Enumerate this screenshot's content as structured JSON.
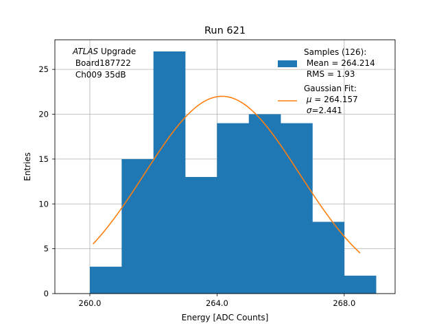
{
  "chart_data": {
    "type": "bar",
    "title": "Run 621",
    "xlabel": "Energy [ADC Counts]",
    "ylabel": "Entries",
    "xlim": [
      258.9,
      269.6
    ],
    "ylim": [
      0,
      28.3
    ],
    "grid": true,
    "legend_position": "top-right",
    "x_ticks": [
      {
        "value": 260,
        "label": "260.0"
      },
      {
        "value": 264,
        "label": "264.0"
      },
      {
        "value": 268,
        "label": "268.0"
      }
    ],
    "y_ticks": [
      {
        "value": 0,
        "label": "0"
      },
      {
        "value": 5,
        "label": "5"
      },
      {
        "value": 10,
        "label": "10"
      },
      {
        "value": 15,
        "label": "15"
      },
      {
        "value": 20,
        "label": "20"
      },
      {
        "value": 25,
        "label": "25"
      }
    ],
    "histogram": {
      "bin_edges": [
        260,
        261,
        262,
        263,
        264,
        265,
        266,
        267,
        268,
        269
      ],
      "counts": [
        3,
        15,
        27,
        13,
        19,
        20,
        19,
        8,
        2
      ],
      "color": "#1f77b4"
    },
    "fit": {
      "type": "gaussian",
      "amplitude": 22.0,
      "mu": 264.157,
      "sigma": 2.441,
      "x_range": [
        260.1,
        268.5
      ],
      "color": "#ff7f0e"
    },
    "annotation_lines": [
      {
        "italic": "ATLAS",
        "text": " Upgrade"
      },
      {
        "italic": "",
        "text": " Board187722"
      },
      {
        "italic": "",
        "text": " Ch009 35dB"
      }
    ],
    "legend": {
      "samples": {
        "lines": [
          "Samples (126):",
          " Mean = 264.214",
          " RMS = 1.93"
        ],
        "color": "#1f77b4"
      },
      "fit": {
        "lines": [
          {
            "greek": "",
            "text": "Gaussian Fit:"
          },
          {
            "greek": "μ",
            "text": " = 264.157"
          },
          {
            "greek": "σ",
            "text": "=2.441"
          }
        ],
        "color": "#ff7f0e"
      }
    }
  }
}
